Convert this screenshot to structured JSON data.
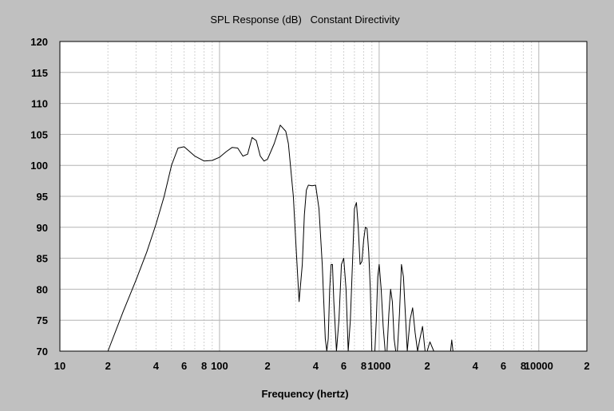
{
  "chart_data": {
    "type": "line",
    "title": "SPL Response (dB)   Constant Directivity",
    "xlabel": "Frequency (hertz)",
    "ylabel": "",
    "x_scale": "log",
    "xlim": [
      10,
      20000
    ],
    "ylim": [
      70,
      120
    ],
    "grid": true,
    "legend": "none",
    "colors": {
      "background": "#c0c0c0",
      "plot": "#ffffff",
      "line": "#000000"
    },
    "y_ticks": [
      "70",
      "75",
      "80",
      "85",
      "90",
      "95",
      "100",
      "105",
      "110",
      "115",
      "120"
    ],
    "x_ticks": [
      {
        "value": 10,
        "label": "10"
      },
      {
        "value": 20,
        "label": "2"
      },
      {
        "value": 40,
        "label": "4"
      },
      {
        "value": 60,
        "label": "6"
      },
      {
        "value": 80,
        "label": "8"
      },
      {
        "value": 100,
        "label": "100"
      },
      {
        "value": 200,
        "label": "2"
      },
      {
        "value": 400,
        "label": "4"
      },
      {
        "value": 600,
        "label": "6"
      },
      {
        "value": 800,
        "label": "8"
      },
      {
        "value": 1000,
        "label": "1000"
      },
      {
        "value": 2000,
        "label": "2"
      },
      {
        "value": 4000,
        "label": "4"
      },
      {
        "value": 6000,
        "label": "6"
      },
      {
        "value": 8000,
        "label": "8"
      },
      {
        "value": 10000,
        "label": "10000"
      },
      {
        "value": 20000,
        "label": "2"
      }
    ],
    "series": [
      {
        "x": [
          20,
          25,
          30,
          35,
          40,
          45,
          50,
          55,
          60,
          70,
          80,
          90,
          100,
          110,
          120,
          130,
          140,
          150,
          160,
          170,
          180,
          190,
          200,
          220,
          240,
          260,
          270,
          290,
          300,
          315,
          330,
          340,
          350,
          360,
          380,
          400,
          420,
          440,
          460,
          470,
          480,
          490,
          500,
          510,
          520,
          540,
          560,
          580,
          600,
          620,
          640,
          660,
          680,
          700,
          720,
          740,
          760,
          780,
          800,
          820,
          840,
          860,
          880,
          900,
          920,
          940,
          960,
          980,
          1000,
          1030,
          1060,
          1090,
          1120,
          1150,
          1180,
          1210,
          1240,
          1270,
          1300,
          1340,
          1380,
          1420,
          1460,
          1500,
          1560,
          1620,
          1680,
          1740,
          1800,
          1870,
          1940,
          2000,
          2040,
          2080,
          2200,
          2700,
          2800,
          2850,
          2900,
          2950,
          3000,
          20000
        ],
        "y": [
          70,
          76.5,
          81.5,
          86,
          90.5,
          95,
          100,
          102.8,
          103,
          101.5,
          100.7,
          100.8,
          101.3,
          102.2,
          102.9,
          102.8,
          101.5,
          101.8,
          104.5,
          104,
          101.5,
          100.7,
          101,
          103.5,
          106.5,
          105.5,
          103.5,
          95,
          88,
          78,
          84,
          92,
          96,
          96.8,
          96.7,
          96.8,
          93,
          84,
          72,
          70,
          72,
          80,
          84,
          84,
          78,
          70,
          75,
          84,
          85,
          80,
          70,
          75,
          84,
          93,
          94,
          90,
          84,
          84.5,
          88,
          90,
          89.8,
          86,
          80,
          70,
          70,
          70,
          75,
          82,
          84,
          80,
          74,
          70,
          70,
          76,
          80,
          78,
          72,
          70,
          70,
          76,
          84,
          82,
          76,
          70,
          75,
          77,
          73,
          70,
          72,
          74,
          70,
          70,
          70.8,
          71.5,
          70,
          70,
          70,
          71.8,
          70,
          70,
          70,
          70
        ]
      }
    ]
  }
}
